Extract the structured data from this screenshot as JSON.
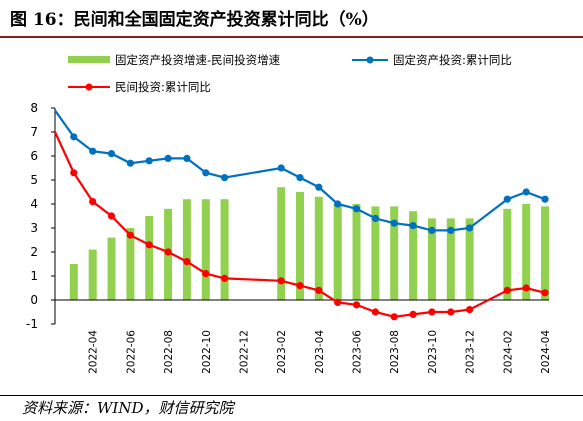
{
  "figure": {
    "title": "图 16：民间和全国固定资产投资累计同比（%）",
    "source": "资料来源：WIND，财信研究院"
  },
  "chart_data": {
    "type": "bar",
    "title": "",
    "xlabel": "",
    "ylabel": "",
    "ylim": [
      -1,
      8
    ],
    "yticks": [
      -1,
      0,
      1,
      2,
      3,
      4,
      5,
      6,
      7,
      8
    ],
    "x": [
      "2022-02",
      "2022-03",
      "2022-04",
      "2022-05",
      "2022-06",
      "2022-07",
      "2022-08",
      "2022-09",
      "2022-10",
      "2022-11",
      "2022-12",
      "2023-01",
      "2023-02",
      "2023-03",
      "2023-04",
      "2023-05",
      "2023-06",
      "2023-07",
      "2023-08",
      "2023-09",
      "2023-10",
      "2023-11",
      "2023-12",
      "2024-01",
      "2024-02",
      "2024-03",
      "2024-04"
    ],
    "xtick_labels": [
      "2022-04",
      "2022-06",
      "2022-08",
      "2022-10",
      "2022-12",
      "2023-02",
      "2023-04",
      "2023-06",
      "2023-08",
      "2023-10",
      "2023-12",
      "2024-02",
      "2024-04"
    ],
    "legend_position": "top",
    "series": [
      {
        "name": "固定资产投资增速-民间投资增速",
        "kind": "bar",
        "color": "#92d050",
        "values": [
          null,
          1.5,
          2.1,
          2.6,
          3.0,
          3.5,
          3.8,
          4.2,
          4.2,
          4.2,
          null,
          null,
          4.7,
          4.5,
          4.3,
          4.0,
          4.0,
          3.9,
          3.9,
          3.7,
          3.4,
          3.4,
          3.4,
          null,
          3.8,
          4.0,
          3.9
        ]
      },
      {
        "name": "固定资产投资:累计同比",
        "kind": "line",
        "color": "#0070c0",
        "values": [
          7.9,
          6.8,
          6.2,
          6.1,
          5.7,
          5.8,
          5.9,
          5.9,
          5.3,
          5.1,
          null,
          null,
          5.5,
          5.1,
          4.7,
          4.0,
          3.8,
          3.4,
          3.2,
          3.1,
          2.9,
          2.9,
          3.0,
          null,
          4.2,
          4.5,
          4.2
        ]
      },
      {
        "name": "民间投资:累计同比",
        "kind": "line",
        "color": "#ff0000",
        "values": [
          7.0,
          5.3,
          4.1,
          3.5,
          2.7,
          2.3,
          2.0,
          1.6,
          1.1,
          0.9,
          null,
          null,
          0.8,
          0.6,
          0.4,
          -0.1,
          -0.2,
          -0.5,
          -0.7,
          -0.6,
          -0.5,
          -0.5,
          -0.4,
          null,
          0.4,
          0.5,
          0.3
        ]
      }
    ]
  }
}
